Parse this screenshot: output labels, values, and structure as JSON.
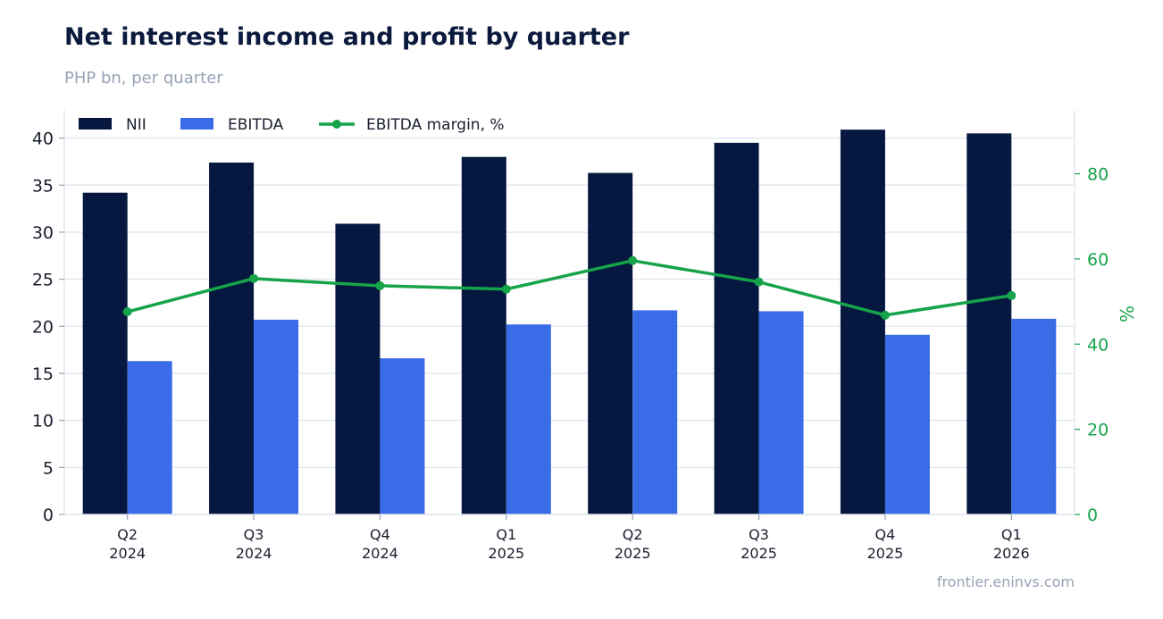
{
  "title": "Net interest income and profit by quarter",
  "subtitle": "PHP bn, per quarter",
  "source": "frontier.eninvs.com",
  "colors": {
    "nii": "#061740",
    "ebitda": "#3b6ce8",
    "margin": "#16a34a",
    "grid": "#e3e7ef",
    "axis_text": "#1a1f2e",
    "muted": "#97a3b6"
  },
  "chart_data": {
    "type": "bar",
    "categories": [
      [
        "Q2",
        "2024"
      ],
      [
        "Q3",
        "2024"
      ],
      [
        "Q4",
        "2024"
      ],
      [
        "Q1",
        "2025"
      ],
      [
        "Q2",
        "2025"
      ],
      [
        "Q3",
        "2025"
      ],
      [
        "Q4",
        "2025"
      ],
      [
        "Q1",
        "2026"
      ]
    ],
    "series": [
      {
        "name": "NII",
        "type": "bar",
        "axis": "left",
        "values": [
          34.2,
          37.4,
          30.9,
          38.0,
          36.3,
          39.5,
          40.9,
          40.5
        ]
      },
      {
        "name": "EBITDA",
        "type": "bar",
        "axis": "left",
        "values": [
          16.3,
          20.7,
          16.6,
          20.2,
          21.7,
          21.6,
          19.1,
          20.8
        ]
      },
      {
        "name": "EBITDA margin, %",
        "type": "line",
        "axis": "right",
        "values": [
          47.6,
          55.4,
          53.7,
          52.9,
          59.6,
          54.6,
          46.8,
          51.4
        ]
      }
    ],
    "y_left": {
      "min": 0,
      "max": 43,
      "ticks": [
        0,
        5,
        10,
        15,
        20,
        25,
        30,
        35,
        40
      ]
    },
    "y_right": {
      "label": "%",
      "min": 0,
      "max": 95,
      "ticks": [
        0,
        20,
        40,
        60,
        80
      ]
    },
    "legend": "top-left",
    "grid": true
  }
}
